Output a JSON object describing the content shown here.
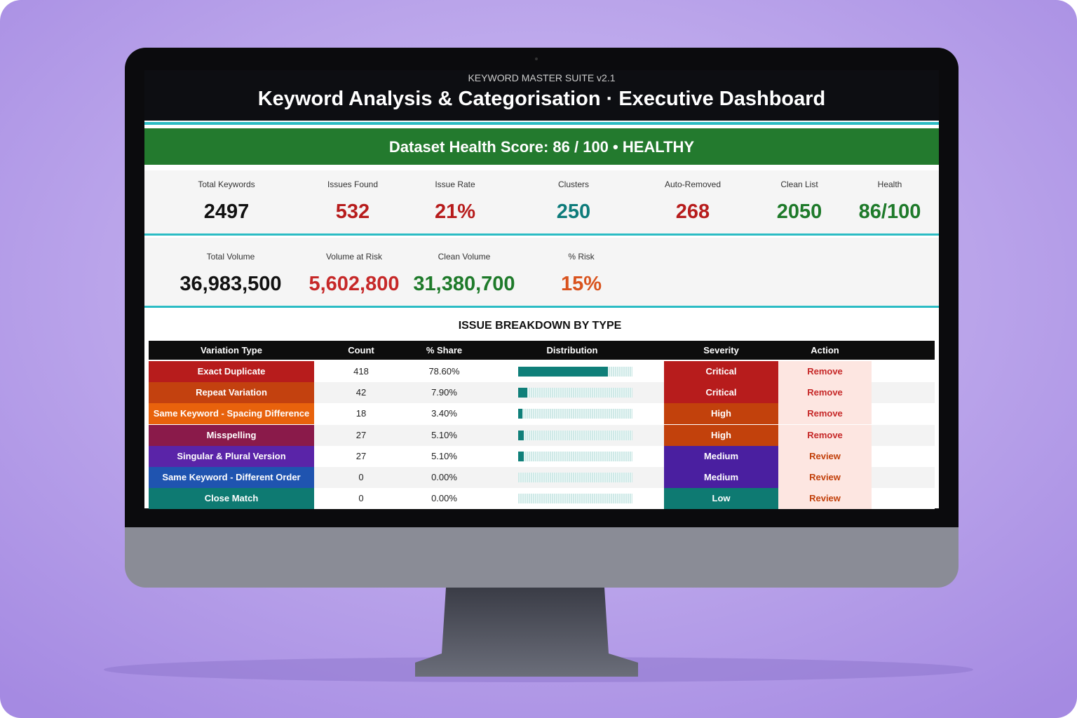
{
  "header": {
    "suite": "KEYWORD MASTER SUITE  v2.1",
    "title": "Keyword Analysis & Categorisation  ·  Executive Dashboard"
  },
  "banner": "Dataset Health Score:  86 / 100  • HEALTHY",
  "kpis": [
    {
      "label": "Total Keywords",
      "value": "2497",
      "color": "#111111"
    },
    {
      "label": "Issues Found",
      "value": "532",
      "color": "#b71c1c"
    },
    {
      "label": "Issue Rate",
      "value": "21%",
      "color": "#b71c1c"
    },
    {
      "label": "Clusters",
      "value": "250",
      "color": "#0e7c7b"
    },
    {
      "label": "Auto-Removed",
      "value": "268",
      "color": "#b71c1c"
    },
    {
      "label": "Clean List",
      "value": "2050",
      "color": "#1e7a2a"
    },
    {
      "label": "Health",
      "value": "86/100",
      "color": "#1e7a2a"
    }
  ],
  "volume_kpis": [
    {
      "label": "Total Volume",
      "value": "36,983,500",
      "color": "#111111"
    },
    {
      "label": "Volume at Risk",
      "value": "5,602,800",
      "color": "#c62828"
    },
    {
      "label": "Clean Volume",
      "value": "31,380,700",
      "color": "#1e7a2a"
    },
    {
      "label": "% Risk",
      "value": "15%",
      "color": "#d9531e"
    }
  ],
  "table": {
    "title": "ISSUE BREAKDOWN BY TYPE",
    "columns": [
      "Variation Type",
      "Count",
      "% Share",
      "Distribution",
      "Severity",
      "Action"
    ],
    "rows": [
      {
        "type": "Exact Duplicate",
        "color": "#b71c1c",
        "count": 418,
        "share": {
          "value": 78.6,
          "label": "78.60%"
        },
        "severity": "Critical",
        "severity_color": "#b71c1c",
        "action": "Remove",
        "action_color": "#c62828"
      },
      {
        "type": "Repeat Variation",
        "color": "#c3410f",
        "count": 42,
        "share": {
          "value": 7.9,
          "label": "7.90%"
        },
        "severity": "Critical",
        "severity_color": "#b71c1c",
        "action": "Remove",
        "action_color": "#c62828"
      },
      {
        "type": "Same Keyword - Spacing Difference",
        "color": "#e8620c",
        "count": 18,
        "share": {
          "value": 3.4,
          "label": "3.40%"
        },
        "severity": "High",
        "severity_color": "#c2410c",
        "action": "Remove",
        "action_color": "#c62828"
      },
      {
        "type": "Misspelling",
        "color": "#8a1a4a",
        "count": 27,
        "share": {
          "value": 5.1,
          "label": "5.10%"
        },
        "severity": "High",
        "severity_color": "#c2410c",
        "action": "Remove",
        "action_color": "#c62828"
      },
      {
        "type": "Singular & Plural Version",
        "color": "#5a24a8",
        "count": 27,
        "share": {
          "value": 5.1,
          "label": "5.10%"
        },
        "severity": "Medium",
        "severity_color": "#4a1fa0",
        "action": "Review",
        "action_color": "#c2410c"
      },
      {
        "type": "Same Keyword - Different Order",
        "color": "#1f54b0",
        "count": 0,
        "share": {
          "value": 0,
          "label": "0.00%"
        },
        "severity": "Medium",
        "severity_color": "#4a1fa0",
        "action": "Review",
        "action_color": "#c2410c"
      },
      {
        "type": "Close Match",
        "color": "#0e7a72",
        "count": 0,
        "share": {
          "value": 0,
          "label": "0.00%"
        },
        "severity": "Low",
        "severity_color": "#0e7a72",
        "action": "Review",
        "action_color": "#c2410c"
      }
    ]
  }
}
